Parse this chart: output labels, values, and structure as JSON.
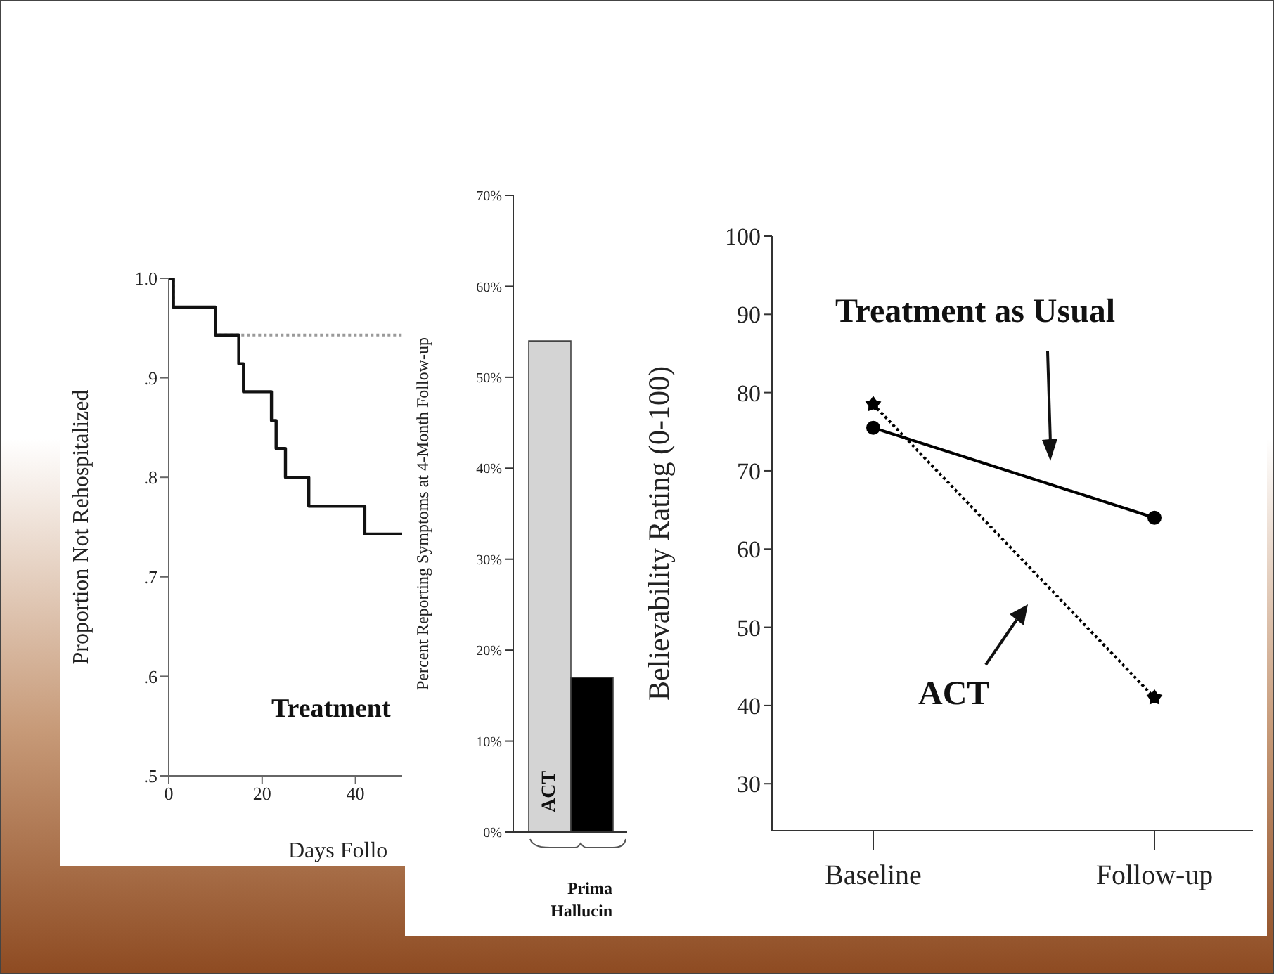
{
  "chart_data": [
    {
      "type": "step",
      "ylabel": "Proportion Not Rehospitalized",
      "xlabel": "Days Follo",
      "annotations": [
        "Treatment"
      ],
      "xlim": [
        0,
        50
      ],
      "xticks": [
        0,
        20,
        40
      ],
      "ylim": [
        0.5,
        1.0
      ],
      "yticks": [
        {
          "value": 0.5,
          "label": ".5"
        },
        {
          "value": 0.6,
          "label": ".6"
        },
        {
          "value": 0.7,
          "label": ".7"
        },
        {
          "value": 0.8,
          "label": ".8"
        },
        {
          "value": 0.9,
          "label": ".9"
        },
        {
          "value": 1.0,
          "label": "1.0"
        }
      ],
      "grid": false,
      "legend": false,
      "marker": "none",
      "series": [
        {
          "color": "#9a9a9a",
          "line_style": "dotted",
          "x": [
            0,
            1,
            10,
            50
          ],
          "values": [
            1.0,
            0.971,
            0.943,
            0.943
          ]
        },
        {
          "color": "#111111",
          "line_style": "solid",
          "x": [
            0,
            1,
            10,
            15,
            16,
            22,
            23,
            25,
            30,
            42,
            50
          ],
          "values": [
            1.0,
            0.971,
            0.943,
            0.914,
            0.886,
            0.857,
            0.829,
            0.8,
            0.771,
            0.743,
            0.743
          ]
        }
      ]
    },
    {
      "type": "bar",
      "ylabel": "Percent Reporting Symptoms at 4-Month Follow-up",
      "categories": [
        "Prima Hallucin"
      ],
      "ylim": [
        0,
        70
      ],
      "yticks": [
        {
          "value": 0,
          "label": "0%"
        },
        {
          "value": 10,
          "label": "10%"
        },
        {
          "value": 20,
          "label": "20%"
        },
        {
          "value": 30,
          "label": "30%"
        },
        {
          "value": 40,
          "label": "40%"
        },
        {
          "value": 50,
          "label": "50%"
        },
        {
          "value": 60,
          "label": "60%"
        },
        {
          "value": 70,
          "label": "70%"
        }
      ],
      "grid": false,
      "legend": false,
      "series": [
        {
          "name": "ACT",
          "color": "#d4d4d4",
          "values": [
            54
          ]
        },
        {
          "color": "#000000",
          "values": [
            17
          ]
        }
      ]
    },
    {
      "type": "line",
      "ylabel": "Believability Rating (0-100)",
      "categories": [
        "Baseline",
        "Follow-up"
      ],
      "annotations": [
        "Treatment as Usual",
        "ACT"
      ],
      "ylim": [
        24,
        100
      ],
      "yticks": [
        30,
        40,
        50,
        60,
        70,
        80,
        90,
        100
      ],
      "grid": false,
      "legend": false,
      "series": [
        {
          "color": "#000000",
          "line_style": "solid",
          "marker": "circle",
          "values": [
            75.5,
            64
          ]
        },
        {
          "color": "#000000",
          "line_style": "dotted",
          "marker": "star",
          "values": [
            78.5,
            41
          ]
        }
      ]
    }
  ]
}
